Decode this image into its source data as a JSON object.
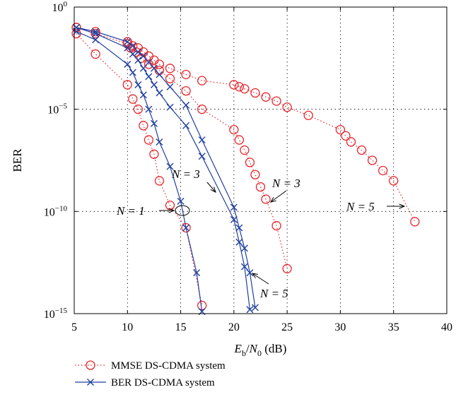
{
  "chart_data": {
    "type": "line",
    "xlabel": "E_b/N_0 (dB)",
    "ylabel": "BER",
    "xlim": [
      5,
      40
    ],
    "ylim_log10": [
      -15,
      0
    ],
    "y_scale": "log",
    "grid": "dotted",
    "x_ticks": [
      5,
      10,
      15,
      20,
      25,
      30,
      35,
      40
    ],
    "y_ticks": [
      {
        "exp": 0,
        "base": "10",
        "sup": "0"
      },
      {
        "exp": -5,
        "base": "10",
        "sup": "−5"
      },
      {
        "exp": -10,
        "base": "10",
        "sup": "−10"
      },
      {
        "exp": -15,
        "base": "10",
        "sup": "−15"
      }
    ],
    "series": [
      {
        "name": "MMSE DS-CDMA system",
        "color": "#e8242a",
        "marker": "circle",
        "line": "dotted",
        "label": "N = 1",
        "x": [
          5.2,
          7.0,
          10.0,
          10.5,
          11.0,
          11.5,
          12.0,
          12.5,
          13.0,
          14.0,
          15.5,
          17.0
        ],
        "log10_y": [
          -1.3,
          -2.3,
          -3.8,
          -4.5,
          -5.0,
          -5.8,
          -6.5,
          -7.2,
          -8.5,
          -9.7,
          -10.8,
          -14.6
        ]
      },
      {
        "name": "MMSE DS-CDMA system",
        "color": "#e8242a",
        "marker": "circle",
        "line": "dotted",
        "label": "N = 3",
        "x": [
          5.2,
          7.0,
          10.0,
          10.3,
          10.8,
          11.3,
          12.0,
          13.0,
          14.0,
          15.5,
          17.0,
          20.0,
          20.5,
          21.0,
          21.5,
          22.0,
          22.5,
          23.0,
          24.0,
          25.0
        ],
        "log10_y": [
          -1.0,
          -1.3,
          -1.8,
          -2.0,
          -2.2,
          -2.5,
          -2.8,
          -3.1,
          -3.5,
          -4.1,
          -5.0,
          -6.0,
          -6.5,
          -7.0,
          -7.6,
          -8.2,
          -8.8,
          -9.4,
          -10.7,
          -12.8
        ]
      },
      {
        "name": "MMSE DS-CDMA system",
        "color": "#e8242a",
        "marker": "circle",
        "line": "dotted",
        "label": "N = 5",
        "x": [
          5.2,
          7.0,
          10.0,
          10.5,
          11.0,
          11.5,
          12.0,
          12.5,
          13.0,
          14.0,
          15.5,
          17.0,
          20.0,
          20.5,
          21.0,
          22.0,
          23.0,
          24.0,
          25.0,
          27.0,
          30.0,
          30.5,
          31.0,
          32.0,
          33.0,
          34.0,
          35.0,
          37.0
        ],
        "log10_y": [
          -1.0,
          -1.2,
          -1.7,
          -1.9,
          -2.0,
          -2.2,
          -2.4,
          -2.6,
          -2.8,
          -3.0,
          -3.3,
          -3.6,
          -3.8,
          -3.9,
          -4.0,
          -4.2,
          -4.4,
          -4.6,
          -4.9,
          -5.3,
          -6.0,
          -6.3,
          -6.6,
          -7.0,
          -7.5,
          -8.0,
          -8.5,
          -10.5
        ]
      },
      {
        "name": "BER DS-CDMA system",
        "color": "#1f3fa0",
        "marker": "x",
        "line": "solid",
        "label": "N = 1",
        "x": [
          5.2,
          7.0,
          10.0,
          10.5,
          11.0,
          11.5,
          12.0,
          12.5,
          13.0,
          14.0,
          15.0,
          15.5,
          16.5,
          17.0
        ],
        "log10_y": [
          -1.2,
          -1.6,
          -2.8,
          -3.2,
          -3.8,
          -4.3,
          -5.0,
          -5.7,
          -6.6,
          -7.8,
          -9.5,
          -10.8,
          -13.0,
          -14.9
        ]
      },
      {
        "name": "BER DS-CDMA system",
        "color": "#1f3fa0",
        "marker": "x",
        "line": "solid",
        "label": "N = 3",
        "x": [
          5.2,
          7.0,
          10.0,
          10.5,
          11.0,
          11.5,
          12.0,
          12.5,
          13.0,
          14.0,
          15.5,
          17.0,
          20.0,
          20.5,
          21.0,
          21.5
        ],
        "log10_y": [
          -1.0,
          -1.3,
          -2.0,
          -2.3,
          -2.6,
          -3.0,
          -3.4,
          -3.8,
          -4.2,
          -4.9,
          -5.8,
          -7.3,
          -10.4,
          -11.5,
          -12.7,
          -14.8
        ]
      },
      {
        "name": "BER DS-CDMA system",
        "color": "#1f3fa0",
        "marker": "x",
        "line": "solid",
        "label": "N = 5",
        "x": [
          5.2,
          7.0,
          10.0,
          10.5,
          11.0,
          11.5,
          12.0,
          12.5,
          13.0,
          14.0,
          15.5,
          17.0,
          20.0,
          20.5,
          21.0,
          21.5,
          22.0
        ],
        "log10_y": [
          -1.0,
          -1.2,
          -1.7,
          -1.9,
          -2.2,
          -2.4,
          -2.7,
          -3.0,
          -3.3,
          -3.9,
          -4.8,
          -6.5,
          -9.8,
          -10.8,
          -11.8,
          -13.0,
          -14.7
        ]
      }
    ],
    "annotations": [
      {
        "text": "N = 1",
        "target_x": 15.5,
        "target_log10_y": -10.0
      },
      {
        "text": "N = 3",
        "target_x": 20.0,
        "target_log10_y": -9.3
      },
      {
        "text": "N = 3",
        "target_x": 23.0,
        "target_log10_y": -9.4
      },
      {
        "text": "N = 5",
        "target_x": 21.5,
        "target_log10_y": -12.8
      },
      {
        "text": "N = 5",
        "target_x": 37.0,
        "target_log10_y": -10.0
      }
    ],
    "legend": {
      "placement": "below",
      "entries": [
        {
          "label": "MMSE DS-CDMA system",
          "color": "#e8242a",
          "marker": "circle",
          "line": "dotted"
        },
        {
          "label": "BER DS-CDMA system",
          "color": "#1f3fa0",
          "marker": "x",
          "line": "solid"
        }
      ]
    }
  }
}
